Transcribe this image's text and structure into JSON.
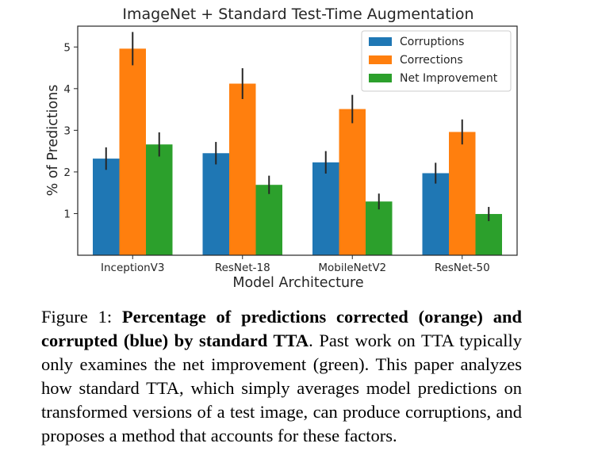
{
  "chart_data": {
    "type": "bar",
    "title": "ImageNet + Standard Test-Time Augmentation",
    "xlabel": "Model Architecture",
    "ylabel": "% of Predictions",
    "categories": [
      "InceptionV3",
      "ResNet-18",
      "MobileNetV2",
      "ResNet-50"
    ],
    "ylim": [
      0,
      5.5
    ],
    "yticks": [
      "1",
      "2",
      "3",
      "4",
      "5"
    ],
    "legend_position": "top-right",
    "grid": false,
    "series": [
      {
        "name": "Corruptions",
        "color": "#1f77b4",
        "values": [
          2.32,
          2.45,
          2.23,
          1.97
        ],
        "errors": [
          0.27,
          0.27,
          0.27,
          0.25
        ]
      },
      {
        "name": "Corrections",
        "color": "#ff7f0e",
        "values": [
          4.96,
          4.12,
          3.51,
          2.96
        ],
        "errors": [
          0.4,
          0.37,
          0.34,
          0.3
        ]
      },
      {
        "name": "Net Improvement",
        "color": "#2ca02c",
        "values": [
          2.66,
          1.69,
          1.29,
          0.99
        ],
        "errors": [
          0.29,
          0.22,
          0.19,
          0.17
        ]
      }
    ]
  },
  "caption": {
    "label": "Figure 1: ",
    "bold": "Percentage of predictions corrected (orange) and corrupted (blue) by standard TTA",
    "rest": ". Past work on TTA typically only examines the net improvement (green). This paper analyzes how standard TTA, which simply averages model predictions on transformed versions of a test image, can produce corruptions, and proposes a method that accounts for these factors."
  }
}
